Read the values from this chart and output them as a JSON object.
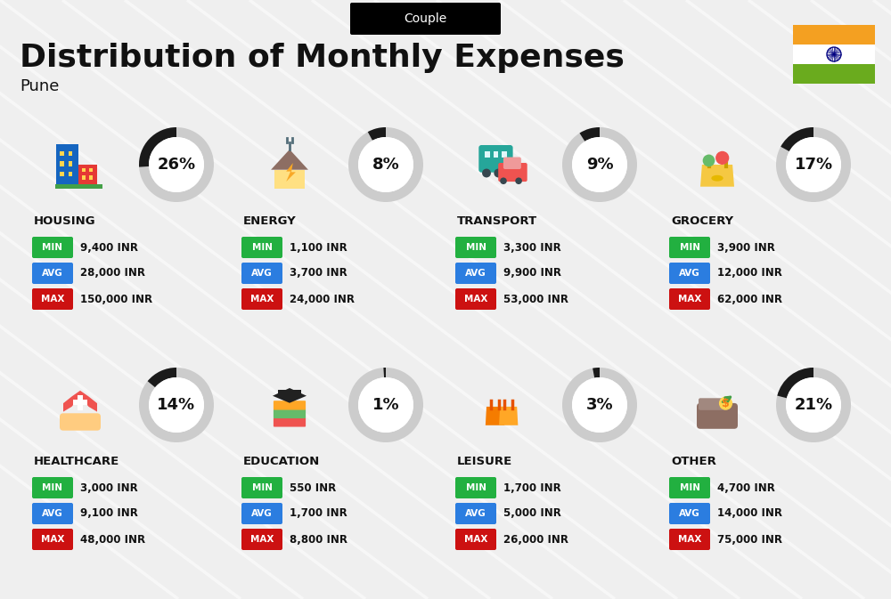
{
  "title": "Distribution of Monthly Expenses",
  "subtitle": "Couple",
  "city": "Pune",
  "bg_color": "#efefef",
  "categories": [
    {
      "name": "HOUSING",
      "pct": 26,
      "min": "9,400 INR",
      "avg": "28,000 INR",
      "max": "150,000 INR",
      "icon_type": "housing"
    },
    {
      "name": "ENERGY",
      "pct": 8,
      "min": "1,100 INR",
      "avg": "3,700 INR",
      "max": "24,000 INR",
      "icon_type": "energy"
    },
    {
      "name": "TRANSPORT",
      "pct": 9,
      "min": "3,300 INR",
      "avg": "9,900 INR",
      "max": "53,000 INR",
      "icon_type": "transport"
    },
    {
      "name": "GROCERY",
      "pct": 17,
      "min": "3,900 INR",
      "avg": "12,000 INR",
      "max": "62,000 INR",
      "icon_type": "grocery"
    },
    {
      "name": "HEALTHCARE",
      "pct": 14,
      "min": "3,000 INR",
      "avg": "9,100 INR",
      "max": "48,000 INR",
      "icon_type": "healthcare"
    },
    {
      "name": "EDUCATION",
      "pct": 1,
      "min": "550 INR",
      "avg": "1,700 INR",
      "max": "8,800 INR",
      "icon_type": "education"
    },
    {
      "name": "LEISURE",
      "pct": 3,
      "min": "1,700 INR",
      "avg": "5,000 INR",
      "max": "26,000 INR",
      "icon_type": "leisure"
    },
    {
      "name": "OTHER",
      "pct": 21,
      "min": "4,700 INR",
      "avg": "14,000 INR",
      "max": "75,000 INR",
      "icon_type": "other"
    }
  ],
  "color_min": "#22b040",
  "color_avg": "#2b7de0",
  "color_max": "#cc1111",
  "color_dark": "#111111",
  "color_arc_dark": "#1a1a1a",
  "color_arc_light": "#cccccc",
  "flag_orange": "#f4a021",
  "flag_green": "#6aab1e",
  "flag_white": "#ffffff",
  "stripe_color": "#ffffff",
  "stripe_alpha": 0.55
}
